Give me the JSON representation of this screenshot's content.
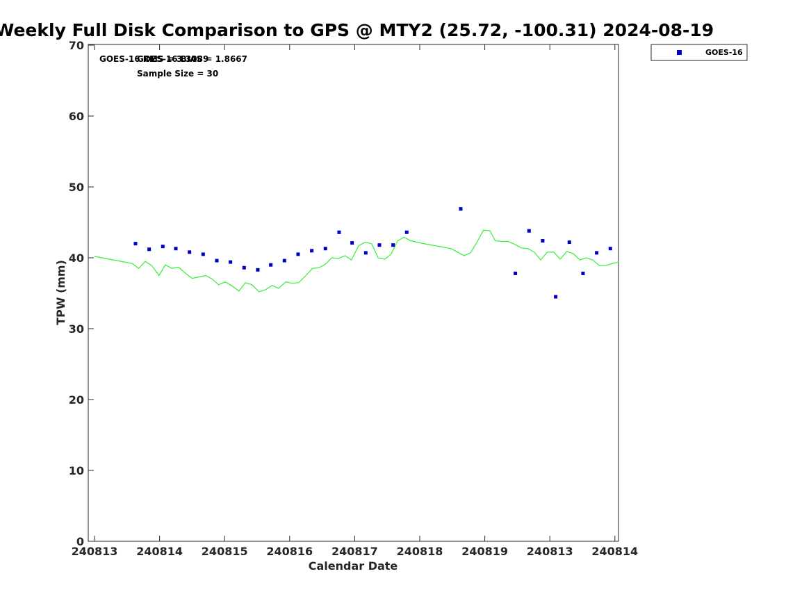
{
  "chart_data": {
    "type": "scatter",
    "title": "Weekly Full Disk Comparison to GPS @ MTY2 (25.72, -100.31) 2024-08-19",
    "xlabel": "Calendar Date",
    "ylabel": "TPW (mm)",
    "xlim": [
      0,
      8.1
    ],
    "ylim": [
      0,
      70
    ],
    "x_tick_positions": [
      0,
      1,
      2,
      3,
      4,
      5,
      6,
      7,
      8
    ],
    "x_tick_labels": [
      "240813",
      "240814",
      "240815",
      "240816",
      "240817",
      "240818",
      "240819",
      "240813",
      "240814"
    ],
    "y_ticks": [
      0,
      10,
      20,
      30,
      40,
      50,
      60,
      70
    ],
    "grid": false,
    "legend_position": "top-right",
    "annotations": [
      "GOES-16 RMS = 3.3089",
      "GOES-16 BIAS = 1.8667",
      "Sample Size = 30"
    ],
    "series": [
      {
        "name": "GOES-16",
        "kind": "scatter",
        "color": "#0000cc",
        "x": [
          0.63,
          0.84,
          1.05,
          1.25,
          1.46,
          1.67,
          1.88,
          2.09,
          2.3,
          2.51,
          2.71,
          2.92,
          3.13,
          3.34,
          3.55,
          3.76,
          3.96,
          4.17,
          4.38,
          4.59,
          4.8,
          5.63,
          6.47,
          6.68,
          6.89,
          7.09,
          7.3,
          7.51,
          7.72,
          7.93
        ],
        "y": [
          42.0,
          41.2,
          41.6,
          41.3,
          40.8,
          40.5,
          39.6,
          39.4,
          38.6,
          38.3,
          39.0,
          39.6,
          40.5,
          41.0,
          41.3,
          43.6,
          42.1,
          40.7,
          41.8,
          41.8,
          43.6,
          46.9,
          37.8,
          43.8,
          42.4,
          34.5,
          42.2,
          37.8,
          40.7,
          41.3
        ]
      },
      {
        "kind": "line",
        "color": "#33ee33",
        "x": [
          0,
          0.58,
          0.68,
          0.78,
          0.88,
          0.99,
          1.09,
          1.19,
          1.29,
          1.4,
          1.5,
          1.61,
          1.71,
          1.81,
          1.91,
          2.01,
          2.12,
          2.22,
          2.32,
          2.42,
          2.53,
          2.63,
          2.73,
          2.83,
          2.94,
          3.04,
          3.14,
          3.25,
          3.35,
          3.45,
          3.55,
          3.65,
          3.75,
          3.85,
          3.95,
          4.06,
          4.16,
          4.26,
          4.36,
          4.46,
          4.56,
          4.66,
          4.76,
          4.86,
          4.96,
          5.06,
          5.48,
          5.58,
          5.68,
          5.78,
          5.88,
          5.98,
          6.08,
          6.16,
          6.26,
          6.36,
          6.46,
          6.56,
          6.66,
          6.76,
          6.86,
          6.96,
          7.06,
          7.16,
          7.26,
          7.36,
          7.46,
          7.56,
          7.66,
          7.76,
          7.86,
          7.96,
          8.06
        ],
        "y": [
          40.2,
          39.2,
          38.5,
          39.5,
          38.9,
          37.5,
          39.0,
          38.5,
          38.7,
          37.8,
          37.1,
          37.3,
          37.5,
          37.0,
          36.2,
          36.6,
          36.0,
          35.3,
          36.5,
          36.2,
          35.2,
          35.5,
          36.1,
          35.7,
          36.6,
          36.4,
          36.5,
          37.5,
          38.5,
          38.6,
          39.1,
          40.0,
          39.9,
          40.3,
          39.7,
          41.7,
          42.2,
          42.0,
          40.0,
          39.8,
          40.5,
          42.4,
          42.9,
          42.4,
          42.2,
          42.0,
          41.3,
          40.8,
          40.3,
          40.7,
          42.2,
          43.9,
          43.8,
          42.4,
          42.3,
          42.3,
          41.9,
          41.4,
          41.3,
          40.8,
          39.7,
          40.8,
          40.8,
          39.8,
          40.9,
          40.6,
          39.7,
          40.0,
          39.7,
          38.9,
          38.9,
          39.2,
          39.4
        ]
      }
    ]
  }
}
